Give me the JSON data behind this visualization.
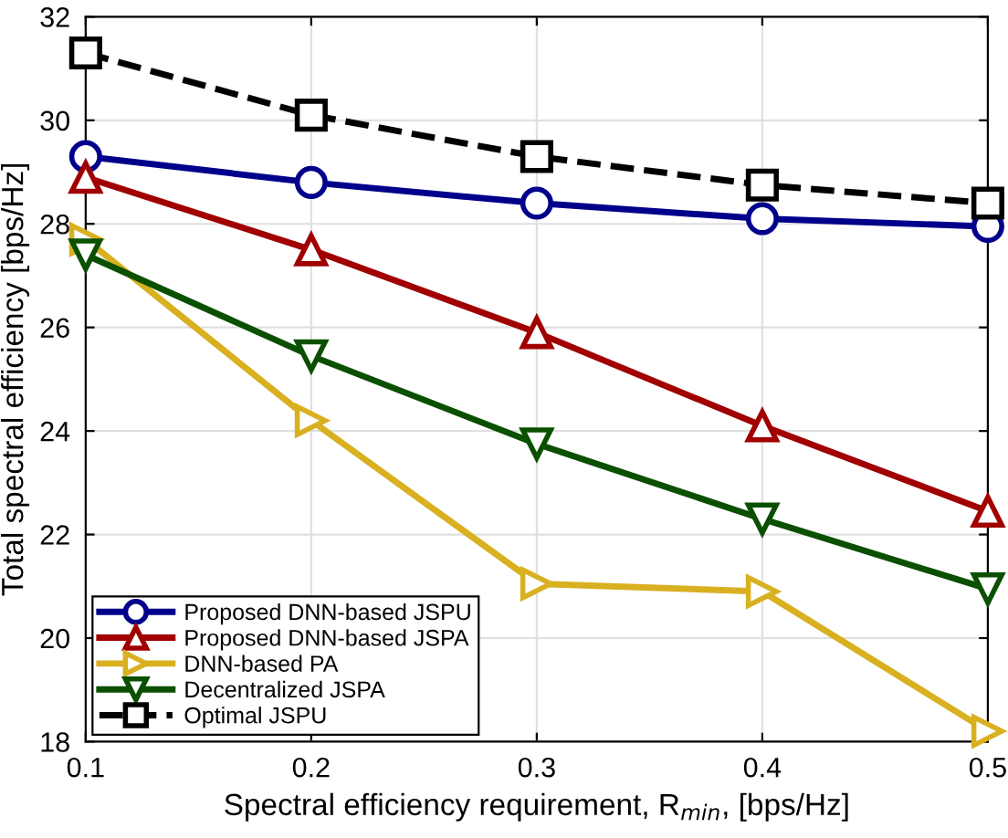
{
  "chart_data": {
    "type": "line",
    "xlabel": "Spectral efficiency requirement, R$_{min}$, [bps/Hz]",
    "ylabel": "Total spectral efficiency [bps/Hz]",
    "x": [
      0.1,
      0.2,
      0.3,
      0.4,
      0.5
    ],
    "xlim": [
      0.1,
      0.5
    ],
    "xticks": [
      0.1,
      0.2,
      0.3,
      0.4,
      0.5
    ],
    "ylim": [
      18,
      32
    ],
    "yticks": [
      18,
      20,
      22,
      24,
      26,
      28,
      30,
      32
    ],
    "grid": true,
    "legend": "bottom left",
    "series": [
      {
        "name": "Proposed DNN-based JSPU",
        "color": "#00008b",
        "marker": "circle",
        "line_style": "solid",
        "values": [
          29.3,
          28.8,
          28.4,
          28.1,
          27.95
        ]
      },
      {
        "name": "Proposed DNN-based JSPA",
        "color": "#a00000",
        "marker": "triangle",
        "line_style": "solid",
        "values": [
          28.9,
          27.5,
          25.9,
          24.1,
          22.45
        ]
      },
      {
        "name": "DNN-based PA",
        "color": "#d9b020",
        "marker": "triangle_right",
        "line_style": "solid",
        "values": [
          27.7,
          24.2,
          21.05,
          20.9,
          18.2
        ]
      },
      {
        "name": "Decentralized JSPA",
        "color": "#0a5000",
        "marker": "triangle_down",
        "line_style": "solid",
        "values": [
          27.4,
          25.45,
          23.75,
          22.3,
          20.95
        ]
      },
      {
        "name": "Optimal JSPU",
        "color": "#000000",
        "marker": "square",
        "line_style": "dashed",
        "values": [
          31.3,
          30.1,
          29.3,
          28.75,
          28.4
        ]
      }
    ]
  }
}
